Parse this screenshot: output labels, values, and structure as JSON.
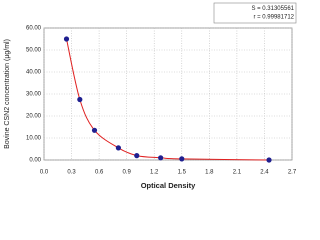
{
  "chart_data": {
    "type": "scatter",
    "x_label": "Optical Density",
    "y_label": "Bovine CSN2 concentration (µg/ml)",
    "annotations": [
      "S = 0.31305561",
      "r = 0.99981712"
    ],
    "x": [
      0.245,
      0.39,
      0.55,
      0.81,
      1.01,
      1.27,
      1.5,
      2.45
    ],
    "series": [
      {
        "color": "#1f1f8f",
        "line_color": "#e02020",
        "values": [
          55,
          27.5,
          13.5,
          5.5,
          2,
          1,
          0.5,
          0
        ]
      }
    ],
    "xlim": [
      0,
      2.7
    ],
    "xticks": [
      {
        "value": 0,
        "label": "0.0"
      },
      0.3,
      0.6,
      0.9,
      1.2,
      1.5,
      1.8,
      2.1,
      2.4,
      2.7
    ],
    "ylim": [
      0,
      60
    ],
    "yticks": [
      {
        "value": 0,
        "label": "0.00"
      },
      {
        "value": 10,
        "label": "10.00"
      },
      {
        "value": 20,
        "label": "20.00"
      },
      {
        "value": 30,
        "label": "30.00"
      },
      {
        "value": 40,
        "label": "40.00"
      },
      {
        "value": 50,
        "label": "50.00"
      },
      {
        "value": 60,
        "label": "60.00"
      }
    ],
    "grid": true
  }
}
